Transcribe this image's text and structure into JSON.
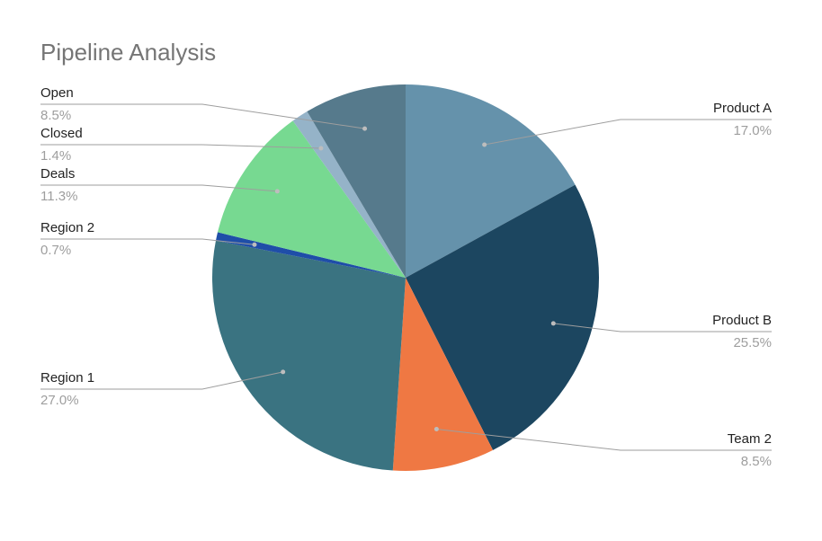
{
  "chart_data": {
    "type": "pie",
    "title": "Pipeline Analysis",
    "categories": [
      "Product A",
      "Product B",
      "Team 2",
      "Region 1",
      "Region 2",
      "Deals",
      "Closed",
      "Open"
    ],
    "values": [
      17.0,
      25.5,
      8.5,
      27.0,
      0.7,
      11.3,
      1.4,
      8.5
    ],
    "value_labels": [
      "17.0%",
      "25.5%",
      "8.5%",
      "27.0%",
      "0.7%",
      "11.3%",
      "1.4%",
      "8.5%"
    ],
    "colors": [
      "#6592ab",
      "#1c4660",
      "#ef7843",
      "#3a7381",
      "#1f4ea8",
      "#77d991",
      "#95b3c8",
      "#567a8c"
    ]
  }
}
